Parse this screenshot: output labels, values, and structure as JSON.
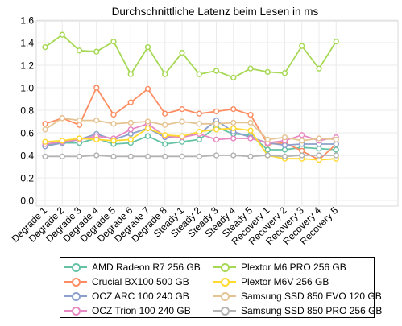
{
  "chart_data": {
    "type": "line",
    "title": "Durchschnittliche Latenz beim Lesen in ms",
    "xlabel": "",
    "ylabel": "",
    "ylim": [
      0,
      1.6
    ],
    "yticks": [
      "0.0",
      "0.2",
      "0.4",
      "0.6",
      "0.8",
      "1.0",
      "1.2",
      "1.4",
      "1.6"
    ],
    "grid": true,
    "legend_position": "bottom",
    "categories": [
      "Degrade 1",
      "Degrade 2",
      "Degrade 3",
      "Degrade 4",
      "Degrade 5",
      "Degrade 6",
      "Degrade 7",
      "Degrade 8",
      "Steady 1",
      "Steady 2",
      "Steady 3",
      "Steady 4",
      "Steady 5",
      "Recovery 1",
      "Recovery 2",
      "Recovery 3",
      "Recovery 4",
      "Recovery 5"
    ],
    "series": [
      {
        "name": "AMD Radeon R7 256 GB",
        "color": "#66c2a5",
        "values": [
          0.49,
          0.51,
          0.51,
          0.55,
          0.5,
          0.51,
          0.57,
          0.5,
          0.52,
          0.54,
          0.65,
          0.59,
          0.58,
          0.45,
          0.45,
          0.47,
          0.46,
          0.45
        ]
      },
      {
        "name": "Crucial BX100 500 GB",
        "color": "#fc8d62",
        "values": [
          0.68,
          0.73,
          0.67,
          1.0,
          0.76,
          0.87,
          0.99,
          0.77,
          0.81,
          0.77,
          0.79,
          0.81,
          0.76,
          0.5,
          0.51,
          0.44,
          0.36,
          0.5
        ]
      },
      {
        "name": "OCZ ARC 100 240 GB",
        "color": "#8da0cb",
        "values": [
          0.48,
          0.51,
          0.54,
          0.59,
          0.54,
          0.59,
          0.64,
          0.56,
          0.57,
          0.59,
          0.71,
          0.61,
          0.56,
          0.51,
          0.49,
          0.5,
          0.5,
          0.5
        ]
      },
      {
        "name": "OCZ Trion 100 240 GB",
        "color": "#e78ac3",
        "values": [
          0.5,
          0.52,
          0.54,
          0.57,
          0.55,
          0.63,
          0.68,
          0.57,
          0.56,
          0.59,
          0.54,
          0.55,
          0.55,
          0.51,
          0.53,
          0.58,
          0.53,
          0.56
        ]
      },
      {
        "name": "Plextor M6 PRO 256 GB",
        "color": "#a6d854",
        "values": [
          1.36,
          1.47,
          1.33,
          1.32,
          1.41,
          1.12,
          1.36,
          1.12,
          1.31,
          1.12,
          1.15,
          1.09,
          1.17,
          1.14,
          1.13,
          1.37,
          1.17,
          1.41
        ]
      },
      {
        "name": "Plextor M6V 256 GB",
        "color": "#ffd92f",
        "values": [
          0.52,
          0.53,
          0.55,
          0.54,
          0.53,
          0.54,
          0.64,
          0.58,
          0.57,
          0.61,
          0.63,
          0.64,
          0.62,
          0.4,
          0.37,
          0.37,
          0.36,
          0.37
        ]
      },
      {
        "name": "Samsung SSD 850 EVO 120 GB",
        "color": "#e5c494",
        "values": [
          0.63,
          0.73,
          0.71,
          0.71,
          0.68,
          0.69,
          0.7,
          0.67,
          0.7,
          0.68,
          0.68,
          0.69,
          0.69,
          0.54,
          0.56,
          0.53,
          0.55,
          0.54
        ]
      },
      {
        "name": "Samsung SSD 850 PRO 256 GB",
        "color": "#b3b3b3",
        "values": [
          0.39,
          0.39,
          0.39,
          0.4,
          0.39,
          0.39,
          0.39,
          0.39,
          0.39,
          0.39,
          0.4,
          0.4,
          0.39,
          0.4,
          0.39,
          0.4,
          0.4,
          0.4
        ]
      }
    ]
  }
}
